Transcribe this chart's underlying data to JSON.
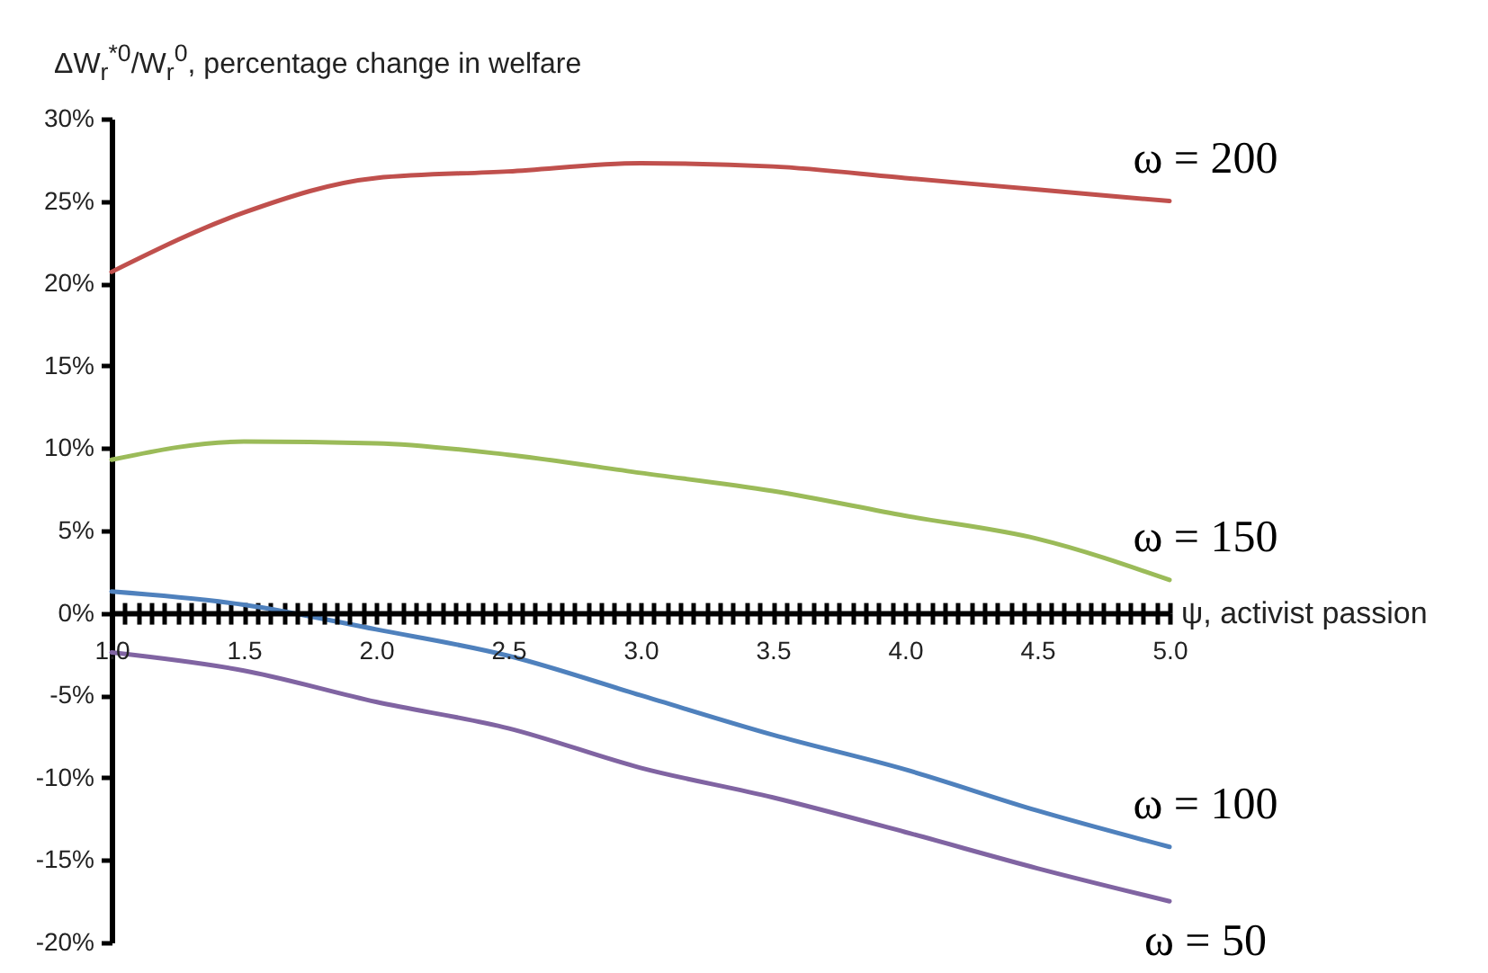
{
  "chart_data": {
    "type": "line",
    "ylabel": "ΔW$_{r}$$^{*0}$/W$_{r}$$^{0}$, percentage change in welfare",
    "xlabel": "ψ, activist passion",
    "x": [
      1.0,
      1.5,
      2.0,
      2.5,
      3.0,
      3.5,
      4.0,
      4.5,
      5.0
    ],
    "series": [
      {
        "name": "ω = 200",
        "color": "#c0504d",
        "values": [
          20.7,
          24.3,
          26.4,
          26.8,
          27.3,
          27.1,
          26.4,
          25.7,
          25.0
        ]
      },
      {
        "name": "ω = 150",
        "color": "#9bbb59",
        "values": [
          9.3,
          10.4,
          10.3,
          9.6,
          8.5,
          7.4,
          5.9,
          4.5,
          2.0
        ]
      },
      {
        "name": "ω = 100",
        "color": "#4f81bd",
        "values": [
          1.3,
          0.5,
          -1.0,
          -2.6,
          -5.0,
          -7.4,
          -9.5,
          -12.0,
          -14.2
        ]
      },
      {
        "name": "ω = 50",
        "color": "#8064a2",
        "values": [
          -2.4,
          -3.5,
          -5.4,
          -7.0,
          -9.4,
          -11.2,
          -13.3,
          -15.5,
          -17.5
        ]
      }
    ],
    "xlim": [
      1.0,
      5.0
    ],
    "xticks": [
      {
        "value": 1.0,
        "label": "1.0"
      },
      {
        "value": 1.05,
        "label": null
      },
      {
        "value": 1.1,
        "label": null
      },
      {
        "value": 1.15,
        "label": null
      },
      {
        "value": 1.2,
        "label": null
      },
      {
        "value": 1.25,
        "label": null
      },
      {
        "value": 1.3,
        "label": null
      },
      {
        "value": 1.35,
        "label": null
      },
      {
        "value": 1.4,
        "label": null
      },
      {
        "value": 1.45,
        "label": null
      },
      {
        "value": 1.5,
        "label": "1.5"
      },
      {
        "value": 1.55,
        "label": null
      },
      {
        "value": 1.6,
        "label": null
      },
      {
        "value": 1.65,
        "label": null
      },
      {
        "value": 1.7,
        "label": null
      },
      {
        "value": 1.75,
        "label": null
      },
      {
        "value": 1.8,
        "label": null
      },
      {
        "value": 1.85,
        "label": null
      },
      {
        "value": 1.9,
        "label": null
      },
      {
        "value": 1.95,
        "label": null
      },
      {
        "value": 2.0,
        "label": "2.0"
      },
      {
        "value": 2.05,
        "label": null
      },
      {
        "value": 2.1,
        "label": null
      },
      {
        "value": 2.15,
        "label": null
      },
      {
        "value": 2.2,
        "label": null
      },
      {
        "value": 2.25,
        "label": null
      },
      {
        "value": 2.3,
        "label": null
      },
      {
        "value": 2.35,
        "label": null
      },
      {
        "value": 2.4,
        "label": null
      },
      {
        "value": 2.45,
        "label": null
      },
      {
        "value": 2.5,
        "label": "2.5"
      },
      {
        "value": 2.55,
        "label": null
      },
      {
        "value": 2.6,
        "label": null
      },
      {
        "value": 2.65,
        "label": null
      },
      {
        "value": 2.7,
        "label": null
      },
      {
        "value": 2.75,
        "label": null
      },
      {
        "value": 2.8,
        "label": null
      },
      {
        "value": 2.85,
        "label": null
      },
      {
        "value": 2.9,
        "label": null
      },
      {
        "value": 2.95,
        "label": null
      },
      {
        "value": 3.0,
        "label": "3.0"
      },
      {
        "value": 3.05,
        "label": null
      },
      {
        "value": 3.1,
        "label": null
      },
      {
        "value": 3.15,
        "label": null
      },
      {
        "value": 3.2,
        "label": null
      },
      {
        "value": 3.25,
        "label": null
      },
      {
        "value": 3.3,
        "label": null
      },
      {
        "value": 3.35,
        "label": null
      },
      {
        "value": 3.4,
        "label": null
      },
      {
        "value": 3.45,
        "label": null
      },
      {
        "value": 3.5,
        "label": "3.5"
      },
      {
        "value": 3.55,
        "label": null
      },
      {
        "value": 3.6,
        "label": null
      },
      {
        "value": 3.65,
        "label": null
      },
      {
        "value": 3.7,
        "label": null
      },
      {
        "value": 3.75,
        "label": null
      },
      {
        "value": 3.8,
        "label": null
      },
      {
        "value": 3.85,
        "label": null
      },
      {
        "value": 3.9,
        "label": null
      },
      {
        "value": 3.95,
        "label": null
      },
      {
        "value": 4.0,
        "label": "4.0"
      },
      {
        "value": 4.05,
        "label": null
      },
      {
        "value": 4.1,
        "label": null
      },
      {
        "value": 4.15,
        "label": null
      },
      {
        "value": 4.2,
        "label": null
      },
      {
        "value": 4.25,
        "label": null
      },
      {
        "value": 4.3,
        "label": null
      },
      {
        "value": 4.35,
        "label": null
      },
      {
        "value": 4.4,
        "label": null
      },
      {
        "value": 4.45,
        "label": null
      },
      {
        "value": 4.5,
        "label": "4.5"
      },
      {
        "value": 4.55,
        "label": null
      },
      {
        "value": 4.6,
        "label": null
      },
      {
        "value": 4.65,
        "label": null
      },
      {
        "value": 4.7,
        "label": null
      },
      {
        "value": 4.75,
        "label": null
      },
      {
        "value": 4.8,
        "label": null
      },
      {
        "value": 4.85,
        "label": null
      },
      {
        "value": 4.9,
        "label": null
      },
      {
        "value": 4.95,
        "label": null
      },
      {
        "value": 5.0,
        "label": "5.0"
      }
    ],
    "ylim": [
      -20,
      30
    ],
    "yticks": [
      {
        "value": -20,
        "label": "-20%"
      },
      {
        "value": -15,
        "label": "-15%"
      },
      {
        "value": -10,
        "label": "-10%"
      },
      {
        "value": -5,
        "label": "-5%"
      },
      {
        "value": 0,
        "label": "0%"
      },
      {
        "value": 5,
        "label": "5%"
      },
      {
        "value": 10,
        "label": "10%"
      },
      {
        "value": 15,
        "label": "15%"
      },
      {
        "value": 20,
        "label": "20%"
      },
      {
        "value": 25,
        "label": "25%"
      },
      {
        "value": 30,
        "label": "30%"
      }
    ],
    "grid": false,
    "legend": false
  }
}
